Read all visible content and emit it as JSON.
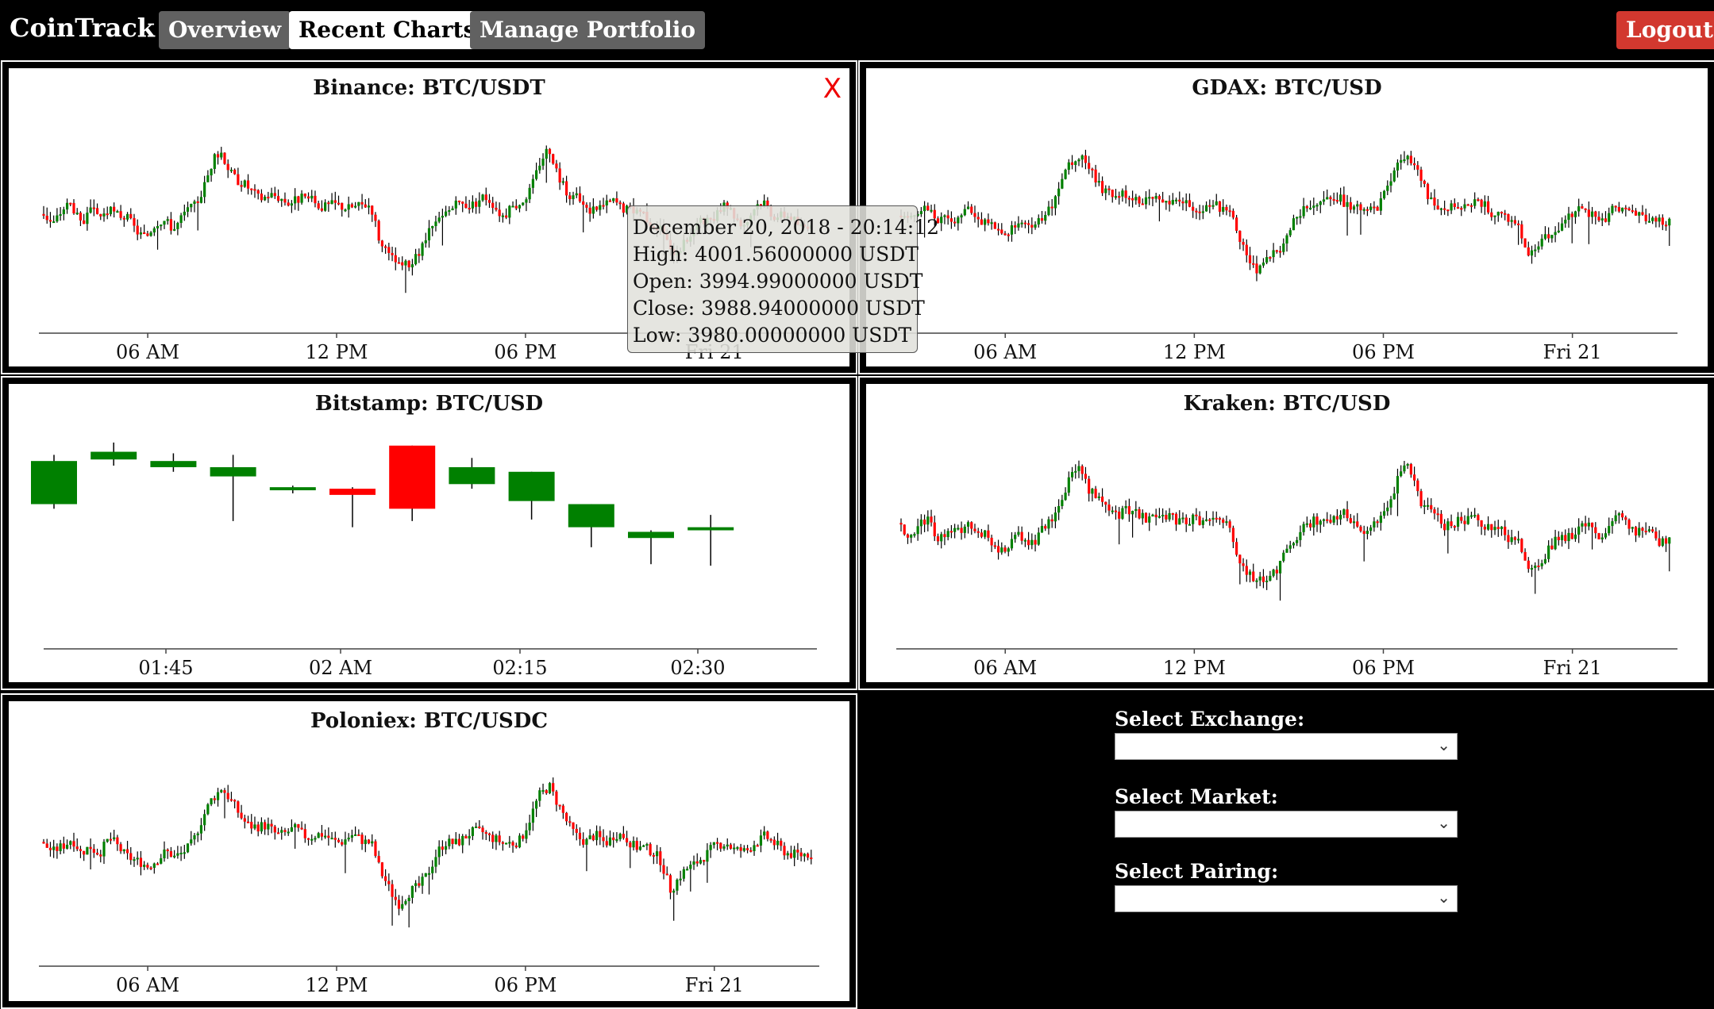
{
  "brand": {
    "name": "CoinTrack",
    "separator": "|"
  },
  "nav": {
    "overview": "Overview",
    "recent_charts": "Recent Charts",
    "manage_portfolio": "Manage Portfolio",
    "logout": "Logout"
  },
  "panels": [
    {
      "title": "Binance: BTC/USDT",
      "close": "X",
      "ticks": [
        "06 AM",
        "12 PM",
        "06 PM",
        "Fri 21"
      ]
    },
    {
      "title": "GDAX: BTC/USD",
      "ticks": [
        "06 AM",
        "12 PM",
        "06 PM",
        "Fri 21"
      ]
    },
    {
      "title": "Bitstamp: BTC/USD",
      "ticks": [
        "01:45",
        "02 AM",
        "02:15",
        "02:30"
      ]
    },
    {
      "title": "Kraken: BTC/USD",
      "ticks": [
        "06 AM",
        "12 PM",
        "06 PM",
        "Fri 21"
      ]
    },
    {
      "title": "Poloniex: BTC/USDC",
      "ticks": [
        "06 AM",
        "12 PM",
        "06 PM",
        "Fri 21"
      ]
    }
  ],
  "tooltip": {
    "date": "December 20, 2018 - 20:14:12",
    "high": "High: 4001.56000000 USDT",
    "open": "Open: 3994.99000000 USDT",
    "close": "Close: 3988.94000000 USDT",
    "low": "Low: 3980.00000000 USDT"
  },
  "selectors": {
    "exchange_label": "Select Exchange:",
    "market_label": "Select Market:",
    "pairing_label": "Select Pairing:"
  },
  "colors": {
    "up": "#008000",
    "down": "#ff0000",
    "wick": "#000000"
  },
  "icons": {
    "close": "close-icon",
    "dropdown": "chevron-down-icon"
  },
  "chart_data": [
    {
      "type": "candlestick",
      "title": "Bitstamp: BTC/USD",
      "x_ticks": [
        "01:45",
        "02 AM",
        "02:15",
        "02:30"
      ],
      "candles": [
        {
          "open": 3,
          "close": 31,
          "high": 35,
          "low": 0
        },
        {
          "open": 32,
          "close": 37,
          "high": 43,
          "low": 28
        },
        {
          "open": 27,
          "close": 31,
          "high": 36,
          "low": 24
        },
        {
          "open": 21,
          "close": 27,
          "high": 35,
          "low": -8
        },
        {
          "open": 12,
          "close": 14,
          "high": 15,
          "low": 10
        },
        {
          "open": 13,
          "close": 9,
          "high": 14,
          "low": -12
        },
        {
          "open": 41,
          "close": 0,
          "high": 41,
          "low": -8
        },
        {
          "open": 16,
          "close": 27,
          "high": 33,
          "low": 13
        },
        {
          "open": 5,
          "close": 24,
          "high": 24,
          "low": -7
        },
        {
          "open": -12,
          "close": 3,
          "high": 3,
          "low": -25
        },
        {
          "open": -19,
          "close": -15,
          "high": -14,
          "low": -36
        },
        {
          "open": -14,
          "close": -12,
          "high": -4,
          "low": -37
        }
      ]
    },
    {
      "type": "candlestick",
      "series_shape": "intraday",
      "x_ticks": [
        "06 AM",
        "12 PM",
        "06 PM",
        "Fri 21"
      ],
      "close_profile": [
        55,
        50,
        56,
        60,
        49,
        55,
        52,
        58,
        54,
        50,
        45,
        42,
        48,
        51,
        47,
        53,
        58,
        70,
        84,
        90,
        80,
        73,
        68,
        65,
        66,
        63,
        62,
        64,
        62,
        61,
        60,
        59,
        58,
        60,
        59,
        58,
        38,
        29,
        22,
        26,
        30,
        40,
        50,
        56,
        58,
        60,
        62,
        64,
        60,
        55,
        57,
        60,
        70,
        85,
        92,
        78,
        67,
        62,
        57,
        60,
        58,
        62,
        59,
        56,
        55,
        50,
        46,
        30,
        36,
        42,
        48,
        50,
        55,
        58,
        52,
        50,
        58,
        61,
        55,
        53,
        51,
        48,
        50
      ]
    }
  ]
}
